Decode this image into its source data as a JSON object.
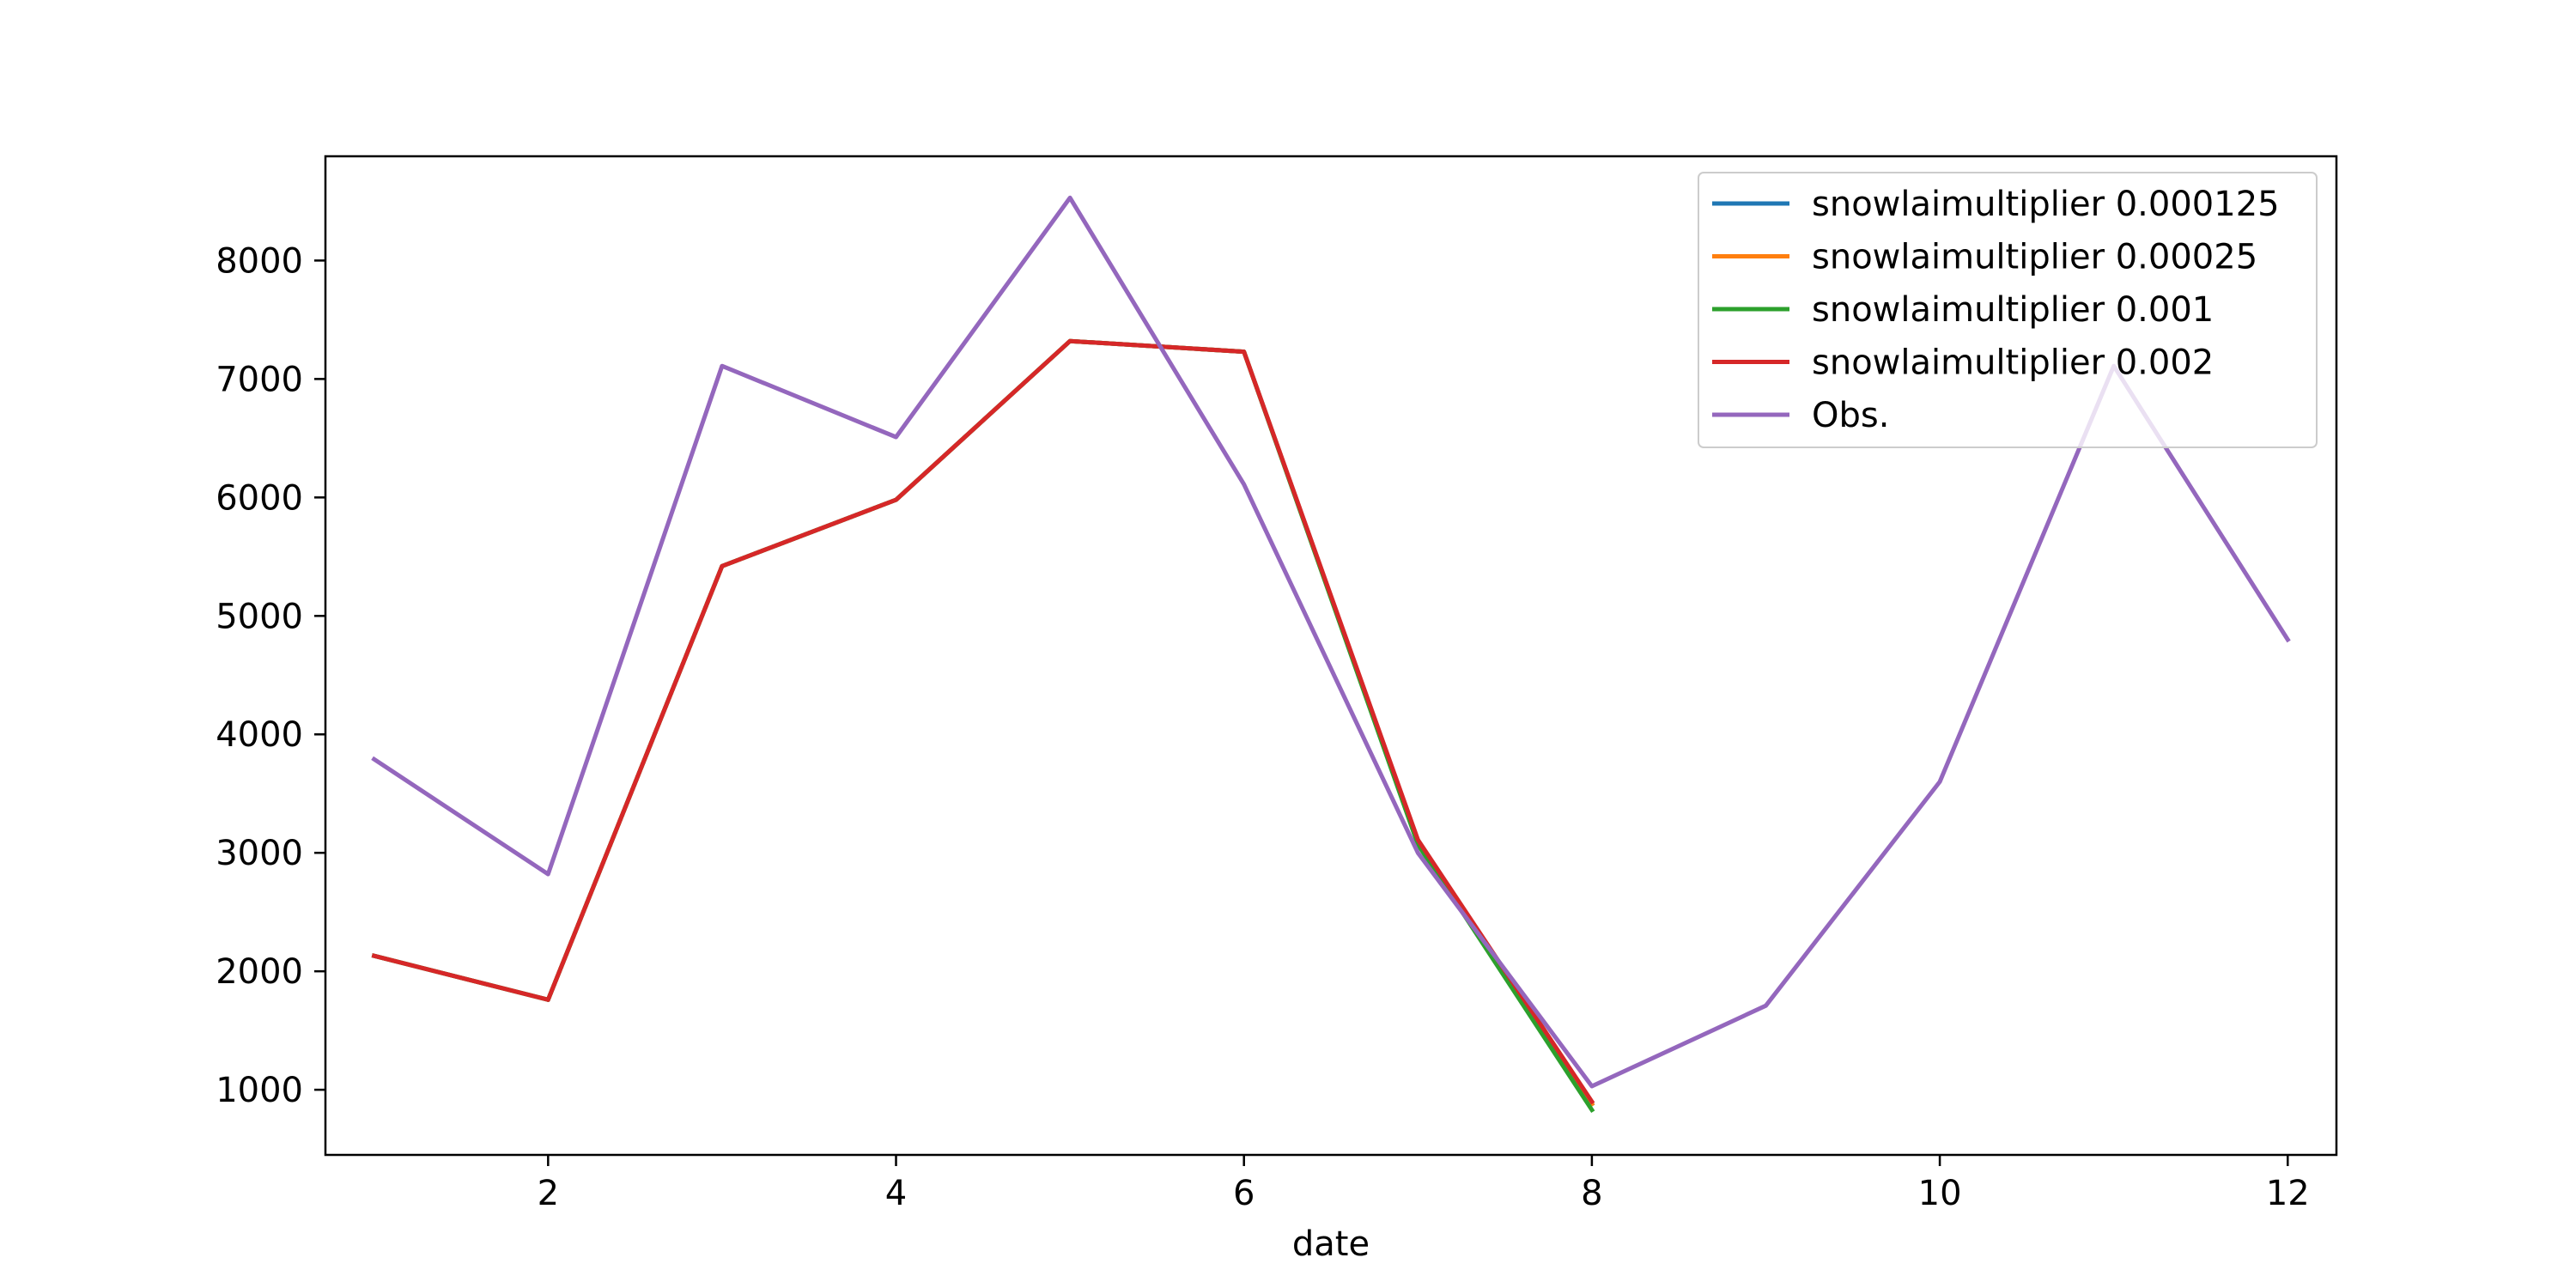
{
  "chart_data": {
    "type": "line",
    "title": "",
    "xlabel": "date",
    "ylabel": "",
    "xlim": [
      0.72,
      12.28
    ],
    "ylim": [
      450,
      8880
    ],
    "xticks": [
      2,
      4,
      6,
      8,
      10,
      12
    ],
    "yticks": [
      1000,
      2000,
      3000,
      4000,
      5000,
      6000,
      7000,
      8000
    ],
    "grid": false,
    "legend_position": "top-right",
    "series": [
      {
        "name": "snowlaimultiplier 0.000125",
        "color": "#1f77b4",
        "x": [
          1,
          2,
          3,
          4,
          5,
          6,
          7,
          8
        ],
        "y": [
          2130,
          1760,
          5420,
          5980,
          7320,
          7230,
          3100,
          880
        ]
      },
      {
        "name": "snowlaimultiplier 0.00025",
        "color": "#ff7f0e",
        "x": [
          1,
          2,
          3,
          4,
          5,
          6,
          7,
          8
        ],
        "y": [
          2130,
          1760,
          5420,
          5980,
          7320,
          7230,
          3100,
          880
        ]
      },
      {
        "name": "snowlaimultiplier 0.001",
        "color": "#2ca02c",
        "x": [
          1,
          2,
          3,
          4,
          5,
          6,
          7,
          8
        ],
        "y": [
          2130,
          1760,
          5420,
          5980,
          7320,
          7230,
          3070,
          830
        ]
      },
      {
        "name": "snowlaimultiplier 0.002",
        "color": "#d62728",
        "x": [
          1,
          2,
          3,
          4,
          5,
          6,
          7,
          8
        ],
        "y": [
          2130,
          1760,
          5420,
          5980,
          7320,
          7230,
          3110,
          900
        ]
      },
      {
        "name": "Obs.",
        "color": "#9467bd",
        "x": [
          1,
          2,
          3,
          4,
          5,
          6,
          7,
          8,
          9,
          10,
          11,
          12
        ],
        "y": [
          3790,
          2820,
          7110,
          6510,
          8530,
          6110,
          3000,
          1030,
          1710,
          3600,
          7110,
          4800
        ]
      }
    ]
  }
}
